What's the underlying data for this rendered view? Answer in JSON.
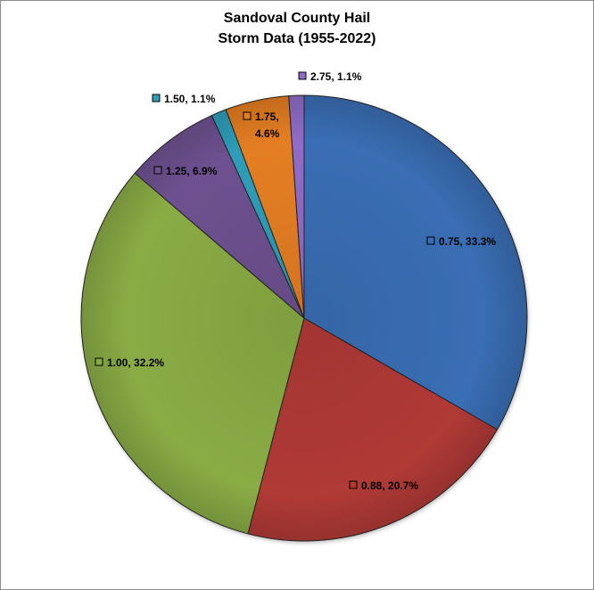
{
  "chart_data": {
    "type": "pie",
    "title": [
      "Sandoval County Hail",
      "Storm Data (1955-2022)"
    ],
    "slices": [
      {
        "category": "0.75",
        "percent_label": "33.3%",
        "value": 33.3,
        "color": "#3A6EB4"
      },
      {
        "category": "0.88",
        "percent_label": "20.7%",
        "value": 20.7,
        "color": "#B03A36"
      },
      {
        "category": "1.00",
        "percent_label": "32.2%",
        "value": 32.2,
        "color": "#8AAC45"
      },
      {
        "category": "1.25",
        "percent_label": "6.9%",
        "value": 6.9,
        "color": "#6E5190"
      },
      {
        "category": "1.50",
        "percent_label": "1.1%",
        "value": 1.1,
        "color": "#2E9EBA"
      },
      {
        "category": "1.75",
        "percent_label": "4.6%",
        "value": 4.6,
        "color": "#E57E22"
      },
      {
        "category": "2.75",
        "percent_label": "1.1%",
        "value": 1.1,
        "color": "#8F6CC8"
      }
    ],
    "start_angle_deg": 0,
    "direction": "clockwise",
    "data_labels": "category, percent",
    "legend": "none"
  }
}
